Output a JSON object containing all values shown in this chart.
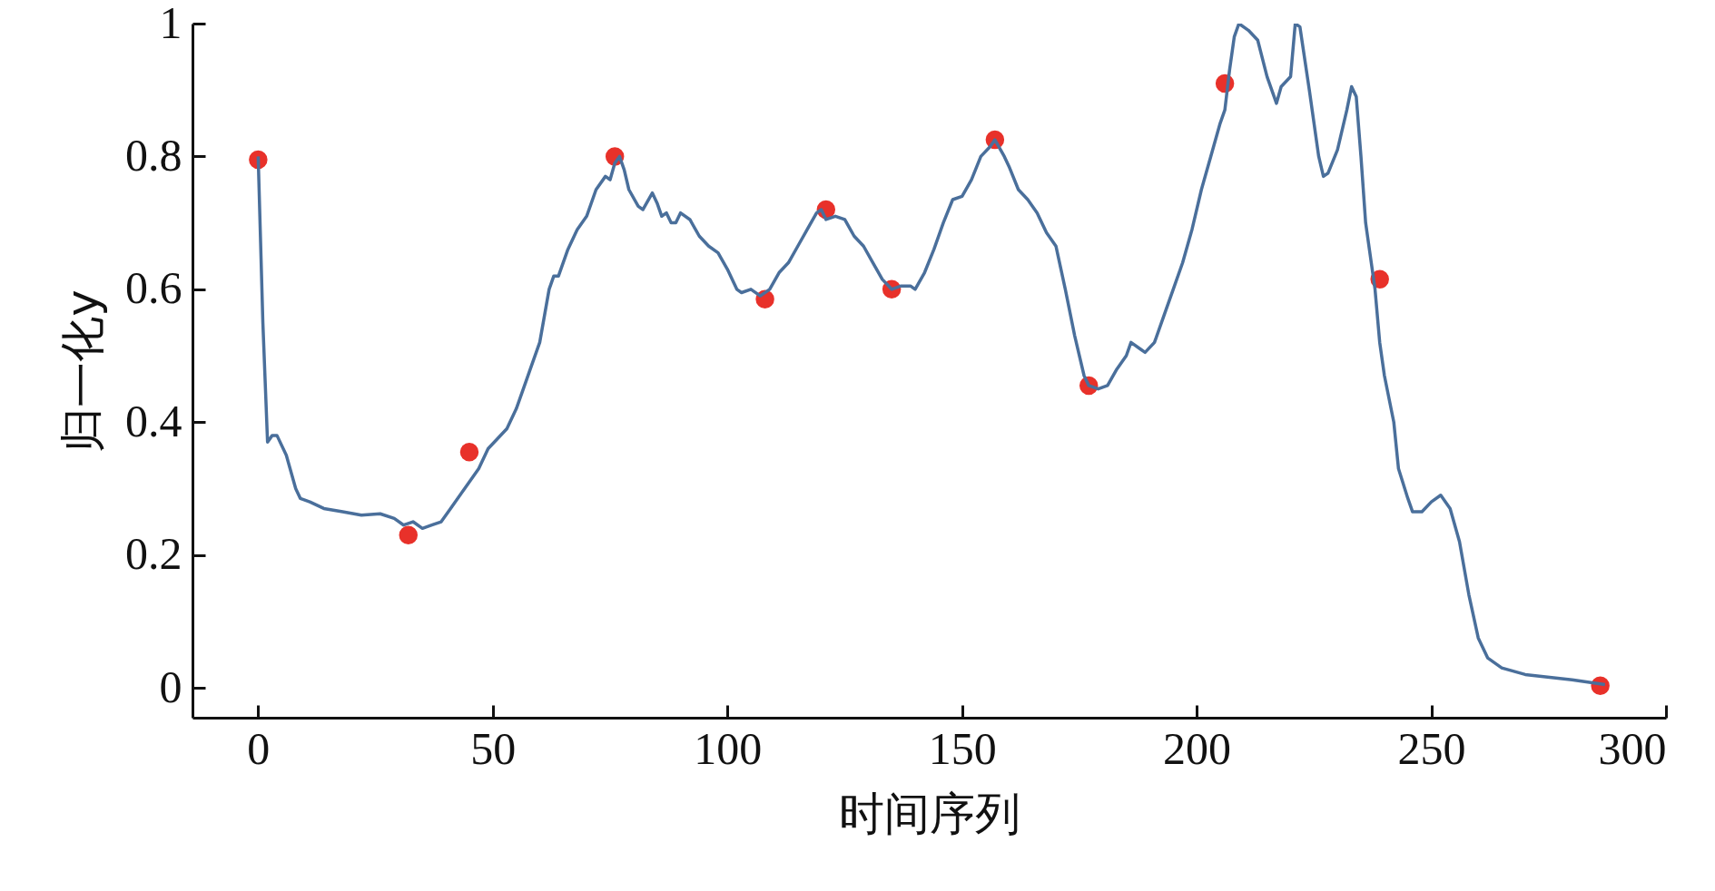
{
  "chart_data": {
    "type": "line",
    "xlabel": "时间序列",
    "ylabel": "归一化y",
    "xlim": [
      -14,
      300
    ],
    "ylim": [
      -0.045,
      1
    ],
    "xticks": [
      0,
      50,
      100,
      150,
      200,
      250,
      300
    ],
    "yticks": [
      0,
      0.2,
      0.4,
      0.6,
      0.8,
      1
    ],
    "grid": false,
    "series": [
      {
        "type": "scatter",
        "marker": "circle",
        "color": "#e8312a",
        "x": [
          0,
          32,
          45,
          76,
          108,
          121,
          135,
          157,
          177,
          206,
          239,
          286
        ],
        "values": [
          0.795,
          0.23,
          0.355,
          0.8,
          0.585,
          0.72,
          0.6,
          0.825,
          0.455,
          0.91,
          0.615,
          0.003
        ]
      },
      {
        "marker": "none",
        "color": "#4a6f9b",
        "x": [
          0,
          1,
          2,
          3,
          4,
          6,
          8,
          9,
          11,
          14,
          18,
          22,
          26,
          29,
          31,
          33,
          35,
          37,
          39,
          41,
          44,
          47,
          49,
          51,
          53,
          55,
          57,
          58,
          60,
          61,
          62,
          63,
          64,
          66,
          68,
          70,
          72,
          74,
          75,
          76,
          77,
          78,
          79,
          81,
          82,
          84,
          85,
          86,
          87,
          88,
          89,
          90,
          92,
          94,
          96,
          98,
          100,
          102,
          103,
          105,
          107,
          109,
          111,
          113,
          115,
          117,
          119,
          120,
          121,
          123,
          125,
          127,
          129,
          131,
          133,
          135,
          137,
          139,
          140,
          142,
          144,
          146,
          148,
          150,
          152,
          154,
          156,
          157,
          159,
          160,
          162,
          164,
          166,
          168,
          170,
          172,
          174,
          176,
          177,
          179,
          181,
          183,
          185,
          186,
          188,
          189,
          191,
          193,
          195,
          197,
          199,
          201,
          203,
          205,
          206,
          207,
          208,
          209,
          211,
          213,
          215,
          217,
          218,
          220,
          221,
          222,
          224,
          226,
          227,
          228,
          230,
          232,
          233,
          234,
          235,
          236,
          238,
          239,
          240,
          242,
          243,
          245,
          246,
          248,
          250,
          252,
          254,
          256,
          258,
          260,
          262,
          265,
          270,
          280,
          287
        ],
        "values": [
          0.8,
          0.55,
          0.37,
          0.38,
          0.38,
          0.35,
          0.3,
          0.285,
          0.28,
          0.27,
          0.265,
          0.26,
          0.262,
          0.255,
          0.245,
          0.25,
          0.24,
          0.245,
          0.25,
          0.27,
          0.3,
          0.33,
          0.36,
          0.375,
          0.39,
          0.42,
          0.46,
          0.48,
          0.52,
          0.56,
          0.6,
          0.62,
          0.62,
          0.66,
          0.69,
          0.71,
          0.75,
          0.77,
          0.765,
          0.79,
          0.8,
          0.78,
          0.75,
          0.725,
          0.72,
          0.745,
          0.73,
          0.71,
          0.715,
          0.7,
          0.7,
          0.715,
          0.705,
          0.68,
          0.665,
          0.655,
          0.63,
          0.6,
          0.595,
          0.6,
          0.59,
          0.6,
          0.625,
          0.64,
          0.665,
          0.69,
          0.715,
          0.72,
          0.705,
          0.71,
          0.705,
          0.68,
          0.665,
          0.64,
          0.615,
          0.6,
          0.605,
          0.605,
          0.6,
          0.625,
          0.66,
          0.7,
          0.735,
          0.74,
          0.765,
          0.8,
          0.815,
          0.825,
          0.8,
          0.785,
          0.75,
          0.735,
          0.715,
          0.685,
          0.665,
          0.6,
          0.53,
          0.47,
          0.455,
          0.45,
          0.455,
          0.48,
          0.5,
          0.52,
          0.51,
          0.505,
          0.52,
          0.56,
          0.6,
          0.64,
          0.69,
          0.75,
          0.8,
          0.85,
          0.87,
          0.93,
          0.98,
          1.0,
          0.99,
          0.975,
          0.92,
          0.88,
          0.905,
          0.92,
          1.0,
          0.995,
          0.9,
          0.8,
          0.77,
          0.775,
          0.81,
          0.87,
          0.905,
          0.89,
          0.8,
          0.7,
          0.6,
          0.52,
          0.47,
          0.4,
          0.33,
          0.285,
          0.265,
          0.265,
          0.28,
          0.29,
          0.27,
          0.22,
          0.14,
          0.075,
          0.045,
          0.03,
          0.02,
          0.012,
          0.005
        ]
      }
    ],
    "line_style": "solid"
  }
}
